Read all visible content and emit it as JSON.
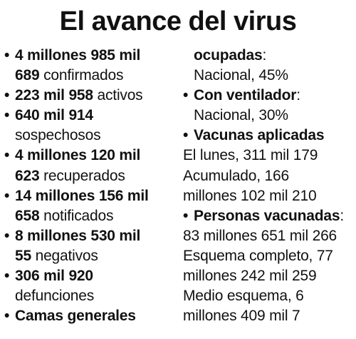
{
  "title": "El avance del virus",
  "left": {
    "confirmados": {
      "line1": "4 millones 985 mil",
      "num2": "689",
      "label": " confirmados"
    },
    "activos": {
      "num": "223 mil 958",
      "label": " activos"
    },
    "sospechosos": {
      "num": "640 mil 914",
      "label": "sospechosos"
    },
    "recuperados": {
      "line1": "4 millones 120 mil",
      "num2": "623",
      "label": " recuperados"
    },
    "notificados": {
      "line1": "14 millones 156 mil",
      "num2": "658",
      "label": " notificados"
    },
    "negativos": {
      "line1": "8 millones 530 mil",
      "num2": "55",
      "label": " negativos"
    },
    "defunciones": {
      "num": "306 mil 920",
      "label": "defunciones"
    },
    "camas_heading": "Camas generales"
  },
  "right": {
    "camas_cont": "ocupadas",
    "camas_colon": ":",
    "camas_value": "Nacional, 45%",
    "ventilador_heading": "Con ventilador",
    "ventilador_colon": ":",
    "ventilador_value": "Nacional, 30%",
    "vacunas_heading": "Vacunas aplicadas",
    "vacunas_lunes": "El lunes, 311 mil 179",
    "vacunas_acum_1": "Acumulado, 166",
    "vacunas_acum_2": "millones 102 mil 210",
    "personas_heading": "Personas vacunadas",
    "personas_colon": ":",
    "personas_total": "83 millones 651 mil 266",
    "esquema_completo_1": "Esquema completo, 77",
    "esquema_completo_2": "millones 242 mil 259",
    "medio_esquema_1": "Medio esquema, 6",
    "medio_esquema_2": "millones 409 mil 7"
  }
}
